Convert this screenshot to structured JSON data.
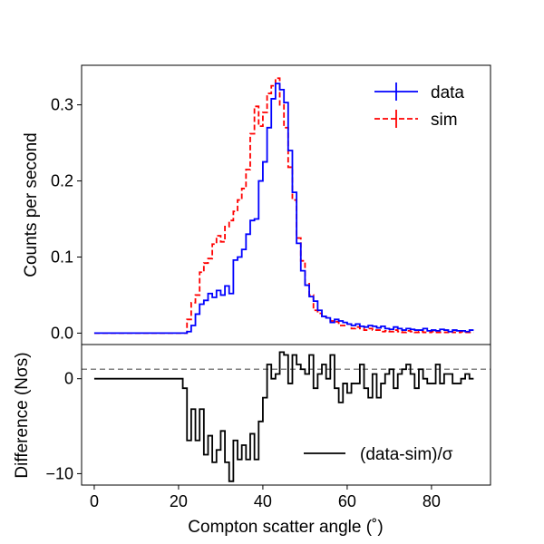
{
  "chart_data": {
    "type": "step",
    "x_axis": {
      "label": "Compton scatter angle (˚)",
      "ticks": [
        0,
        20,
        40,
        60,
        80
      ],
      "tick_labels": [
        "0",
        "20",
        "40",
        "60",
        "80"
      ],
      "range": [
        -3,
        94
      ]
    },
    "top_panel": {
      "ylabel": "Counts per second",
      "ylim": [
        -0.015,
        0.352
      ],
      "yticks": [
        0.0,
        0.1,
        0.2,
        0.3
      ],
      "ytick_labels": [
        "0.0",
        "0.1",
        "0.2",
        "0.3"
      ],
      "legend_position": "top-right",
      "bin_edges_start": 0,
      "bin_width": 1,
      "series": [
        {
          "name": "data",
          "label": "data",
          "color": "#0000ff",
          "style": "solid",
          "values": [
            0,
            0,
            0,
            0,
            0,
            0,
            0,
            0,
            0,
            0,
            0,
            0,
            0,
            0,
            0,
            0,
            0,
            0,
            0,
            0,
            0,
            0,
            0.002,
            0.01,
            0.025,
            0.038,
            0.043,
            0.052,
            0.047,
            0.056,
            0.05,
            0.062,
            0.052,
            0.096,
            0.1,
            0.11,
            0.13,
            0.148,
            0.15,
            0.2,
            0.225,
            0.27,
            0.308,
            0.328,
            0.32,
            0.303,
            0.24,
            0.185,
            0.118,
            0.082,
            0.063,
            0.048,
            0.042,
            0.03,
            0.022,
            0.02,
            0.014,
            0.018,
            0.016,
            0.014,
            0.012,
            0.01,
            0.012,
            0.009,
            0.008,
            0.01,
            0.009,
            0.007,
            0.009,
            0.006,
            0.005,
            0.008,
            0.006,
            0.004,
            0.006,
            0.005,
            0.004,
            0.004,
            0.006,
            0.003,
            0.004,
            0.003,
            0.005,
            0.004,
            0.002,
            0.004,
            0.003,
            0.003,
            0.002,
            0.004
          ]
        },
        {
          "name": "sim",
          "label": "sim",
          "color": "#ff0000",
          "style": "dashed",
          "values": [
            0,
            0,
            0,
            0,
            0,
            0,
            0,
            0,
            0,
            0,
            0,
            0,
            0,
            0,
            0,
            0,
            0,
            0,
            0,
            0,
            0,
            0,
            0.018,
            0.04,
            0.05,
            0.08,
            0.092,
            0.098,
            0.117,
            0.128,
            0.12,
            0.14,
            0.148,
            0.16,
            0.175,
            0.19,
            0.215,
            0.262,
            0.298,
            0.272,
            0.29,
            0.315,
            0.325,
            0.335,
            0.3,
            0.27,
            0.218,
            0.175,
            0.125,
            0.095,
            0.065,
            0.05,
            0.03,
            0.026,
            0.022,
            0.02,
            0.016,
            0.015,
            0.01,
            0.01,
            0.012,
            0.006,
            0.008,
            0.006,
            0.004,
            0.006,
            0.004,
            0.004,
            0.002,
            0.003,
            0.002,
            0.004,
            0.002,
            0.001,
            0.003,
            0.002,
            0.001,
            0.002,
            0.001,
            0.001,
            0.002,
            0.001,
            0.001,
            0.001,
            0.002,
            0.001,
            0.001,
            0.002,
            0.001,
            0.001
          ]
        }
      ]
    },
    "bottom_panel": {
      "ylabel": "Difference (Nσs)",
      "ylim": [
        -11.2,
        3.6
      ],
      "yticks": [
        -10,
        0
      ],
      "ytick_labels": [
        "−10",
        "0"
      ],
      "reference_line": 1,
      "legend_position": "bottom-right",
      "series": [
        {
          "name": "difference",
          "label": "(data-sim)/σ",
          "color": "#000000",
          "style": "solid",
          "values": [
            0,
            0,
            0,
            0,
            0,
            0,
            0,
            0,
            0,
            0,
            0,
            0,
            0,
            0,
            0,
            0,
            0,
            0,
            0,
            0,
            0,
            -1,
            -6.5,
            -3.2,
            -6.5,
            -3.2,
            -8,
            -6,
            -8.8,
            -7.5,
            -5.5,
            -8.8,
            -10.8,
            -6.5,
            -8.5,
            -7.0,
            -8.5,
            -5.8,
            -8.5,
            -4.5,
            -2.0,
            1.5,
            0.0,
            0.5,
            2.8,
            2.5,
            -0.5,
            2.5,
            1.5,
            1.0,
            0.5,
            2.5,
            -1.0,
            0.5,
            1.5,
            0.0,
            2.5,
            -1.0,
            -2.5,
            -0.5,
            -1.5,
            -0.5,
            -0.5,
            1.5,
            -1.0,
            -2.0,
            0.5,
            -2.0,
            -0.5,
            0.5,
            1.0,
            -1.0,
            0.5,
            1.0,
            1.5,
            0.5,
            -1.0,
            1.0,
            0.0,
            -0.5,
            -0.5,
            1.5,
            -0.5,
            0.5,
            0.5,
            -0.5,
            -0.5,
            0.0,
            0.5,
            0.0
          ]
        }
      ]
    }
  }
}
